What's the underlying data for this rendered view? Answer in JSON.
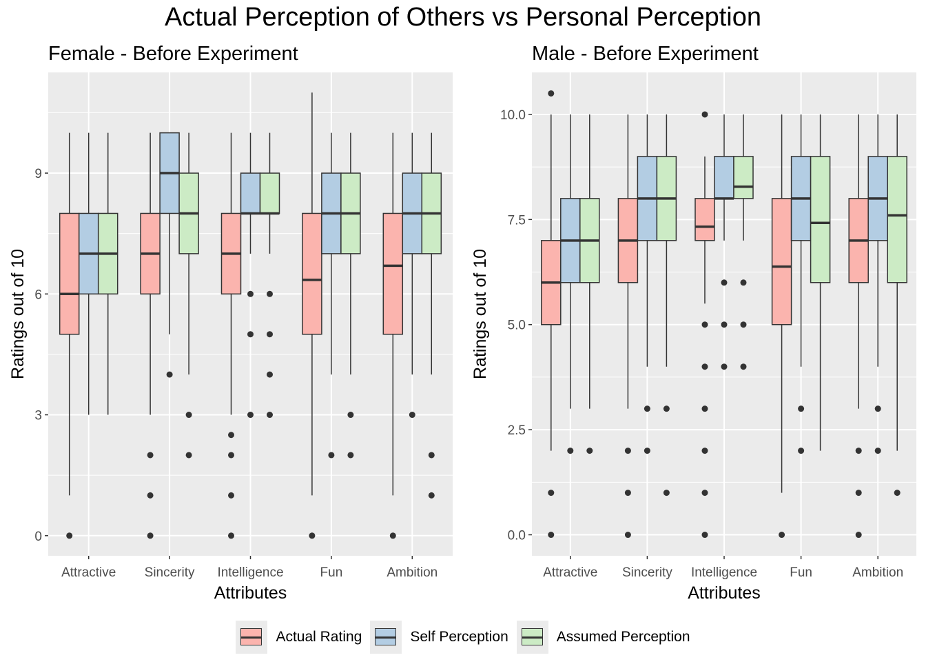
{
  "title": "Actual Perception of Others vs Personal Perception",
  "colors": {
    "Actual Rating": "#fbb4ae",
    "Self Perception": "#b3cde3",
    "Assumed Perception": "#ccebc5",
    "panel_bg": "#ebebeb",
    "line": "#333333"
  },
  "legend": [
    "Actual Rating",
    "Self Perception",
    "Assumed Perception"
  ],
  "chart_data": [
    {
      "type": "boxplot",
      "title": "Female - Before Experiment",
      "xlabel": "Attributes",
      "ylabel": "Ratings out of 10",
      "categories": [
        "Attractive",
        "Sincerity",
        "Intelligence",
        "Fun",
        "Ambition"
      ],
      "ylim": [
        -0.5,
        11.5
      ],
      "yticks": [
        0,
        3,
        6,
        9
      ],
      "ytick_labels": [
        "0",
        "3",
        "6",
        "9"
      ],
      "series": [
        {
          "name": "Actual Rating",
          "boxes": [
            {
              "min": 1,
              "q1": 5,
              "median": 6,
              "q3": 8,
              "max": 10,
              "outliers": [
                0
              ]
            },
            {
              "min": 3,
              "q1": 6,
              "median": 7,
              "q3": 8,
              "max": 10,
              "outliers": [
                2,
                1,
                0
              ]
            },
            {
              "min": 3,
              "q1": 6,
              "median": 7,
              "q3": 8,
              "max": 10,
              "outliers": [
                2.5,
                2,
                1,
                0
              ]
            },
            {
              "min": 1,
              "q1": 5,
              "median": 6.35,
              "q3": 8,
              "max": 11,
              "outliers": [
                0
              ]
            },
            {
              "min": 1,
              "q1": 5,
              "median": 6.7,
              "q3": 8,
              "max": 10,
              "outliers": [
                0
              ]
            }
          ]
        },
        {
          "name": "Self Perception",
          "boxes": [
            {
              "min": 3,
              "q1": 6,
              "median": 7,
              "q3": 8,
              "max": 10,
              "outliers": []
            },
            {
              "min": 5,
              "q1": 8,
              "median": 9,
              "q3": 10,
              "max": 10,
              "outliers": [
                4
              ]
            },
            {
              "min": 7,
              "q1": 8,
              "median": 8,
              "q3": 9,
              "max": 10,
              "outliers": [
                6,
                5,
                3
              ]
            },
            {
              "min": 4,
              "q1": 7,
              "median": 8,
              "q3": 9,
              "max": 10,
              "outliers": [
                2
              ]
            },
            {
              "min": 4,
              "q1": 7,
              "median": 8,
              "q3": 9,
              "max": 10,
              "outliers": [
                3
              ]
            }
          ]
        },
        {
          "name": "Assumed Perception",
          "boxes": [
            {
              "min": 3,
              "q1": 6,
              "median": 7,
              "q3": 8,
              "max": 10,
              "outliers": []
            },
            {
              "min": 4,
              "q1": 7,
              "median": 8,
              "q3": 9,
              "max": 10,
              "outliers": [
                3,
                2
              ]
            },
            {
              "min": 7,
              "q1": 8,
              "median": 8,
              "q3": 9,
              "max": 10,
              "outliers": [
                6,
                5,
                4,
                3
              ]
            },
            {
              "min": 4,
              "q1": 7,
              "median": 8,
              "q3": 9,
              "max": 10,
              "outliers": [
                3,
                2
              ]
            },
            {
              "min": 4,
              "q1": 7,
              "median": 8,
              "q3": 9,
              "max": 10,
              "outliers": [
                2,
                1
              ]
            }
          ]
        }
      ]
    },
    {
      "type": "boxplot",
      "title": "Male - Before Experiment",
      "xlabel": "Attributes",
      "ylabel": "Ratings out of 10",
      "categories": [
        "Attractive",
        "Sincerity",
        "Intelligence",
        "Fun",
        "Ambition"
      ],
      "ylim": [
        -0.5,
        11.0
      ],
      "yticks": [
        0,
        2.5,
        5,
        7.5,
        10
      ],
      "ytick_labels": [
        "0.0",
        "2.5",
        "5.0",
        "7.5",
        "10.0"
      ],
      "series": [
        {
          "name": "Actual Rating",
          "boxes": [
            {
              "min": 2,
              "q1": 5,
              "median": 6,
              "q3": 7,
              "max": 10,
              "outliers": [
                10.5,
                1,
                0
              ]
            },
            {
              "min": 3,
              "q1": 6,
              "median": 7,
              "q3": 8,
              "max": 10,
              "outliers": [
                2,
                1,
                0
              ]
            },
            {
              "min": 5.5,
              "q1": 7,
              "median": 7.33,
              "q3": 8,
              "max": 9,
              "outliers": [
                10,
                5,
                4,
                3,
                2,
                1,
                0
              ]
            },
            {
              "min": 1,
              "q1": 5,
              "median": 6.38,
              "q3": 8,
              "max": 10,
              "outliers": [
                0
              ]
            },
            {
              "min": 3,
              "q1": 6,
              "median": 7,
              "q3": 8,
              "max": 10,
              "outliers": [
                2,
                1,
                0
              ]
            }
          ]
        },
        {
          "name": "Self Perception",
          "boxes": [
            {
              "min": 3,
              "q1": 6,
              "median": 7,
              "q3": 8,
              "max": 10,
              "outliers": [
                2
              ]
            },
            {
              "min": 4,
              "q1": 7,
              "median": 8,
              "q3": 9,
              "max": 10,
              "outliers": [
                3,
                2
              ]
            },
            {
              "min": 7,
              "q1": 8,
              "median": 8,
              "q3": 9,
              "max": 10,
              "outliers": [
                6,
                5,
                4
              ]
            },
            {
              "min": 4,
              "q1": 7,
              "median": 8,
              "q3": 9,
              "max": 10,
              "outliers": [
                3,
                2
              ]
            },
            {
              "min": 4,
              "q1": 7,
              "median": 8,
              "q3": 9,
              "max": 10,
              "outliers": [
                3,
                2
              ]
            }
          ]
        },
        {
          "name": "Assumed Perception",
          "boxes": [
            {
              "min": 3,
              "q1": 6,
              "median": 7,
              "q3": 8,
              "max": 10,
              "outliers": [
                2
              ]
            },
            {
              "min": 4,
              "q1": 7,
              "median": 8,
              "q3": 9,
              "max": 10,
              "outliers": [
                3,
                1
              ]
            },
            {
              "min": 7,
              "q1": 8,
              "median": 8.28,
              "q3": 9,
              "max": 10,
              "outliers": [
                6,
                5,
                4
              ]
            },
            {
              "min": 2,
              "q1": 6,
              "median": 7.42,
              "q3": 9,
              "max": 10,
              "outliers": []
            },
            {
              "min": 2,
              "q1": 6,
              "median": 7.6,
              "q3": 9,
              "max": 10,
              "outliers": [
                1
              ]
            }
          ]
        }
      ]
    }
  ]
}
